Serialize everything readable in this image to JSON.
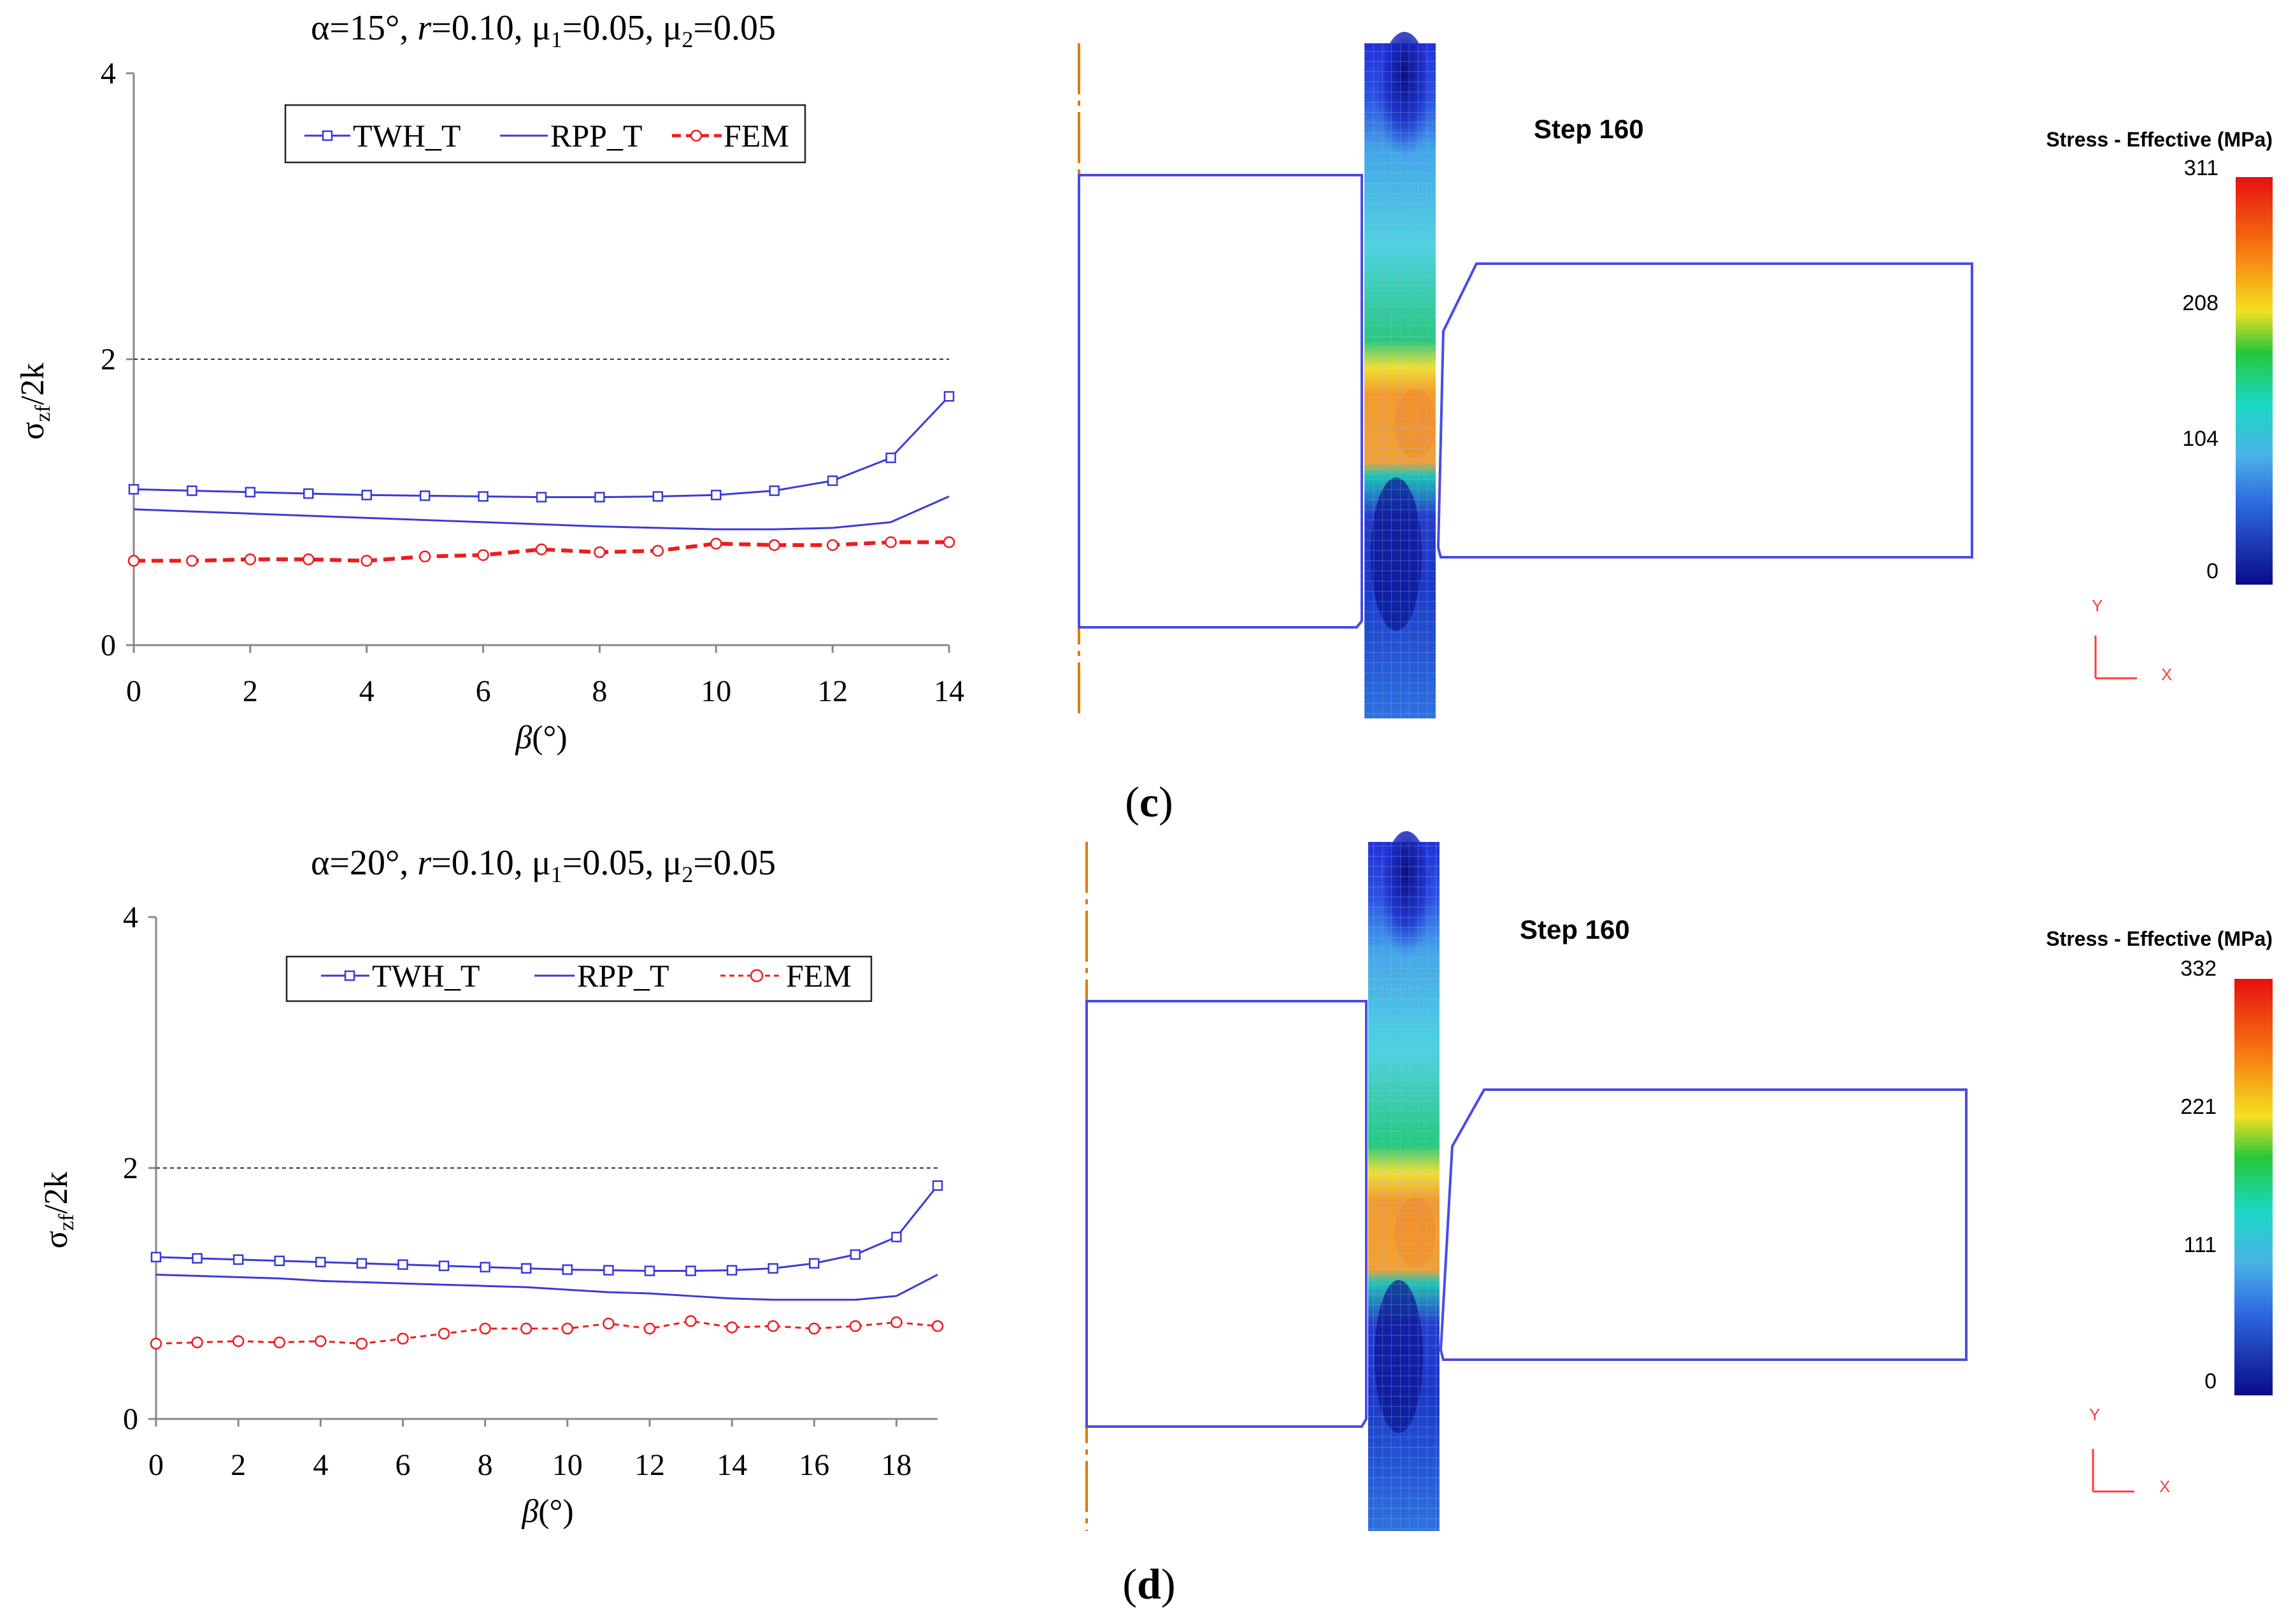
{
  "colors": {
    "twh": "#3a3ad8",
    "rpp": "#3a3ad8",
    "fem": "#ee1c1c",
    "die": "#4a4ae6",
    "axis_line": "#e07b00",
    "triad": "#ff3a3a"
  },
  "chart_data": [
    {
      "type": "line",
      "title": "α=15°, r=0.10, μ1=0.05, μ2=0.05",
      "title_parts": {
        "alpha": "α=15°, ",
        "r_italic": "r",
        "r_rest": "=0.10, μ",
        "mu1_sub": "1",
        "mu1_val": "=0.05, μ",
        "mu2_sub": "2",
        "mu2_val": "=0.05"
      },
      "ylabel_main": "σ",
      "ylabel_sub": "zf",
      "ylabel_rest": "/2k",
      "xlabel_beta": "β",
      "xlabel_unit": "(°)",
      "xlim": [
        0,
        14
      ],
      "ylim": [
        0,
        4
      ],
      "xticks": [
        0,
        2,
        4,
        6,
        8,
        10,
        12,
        14
      ],
      "yticks": [
        0,
        2,
        4
      ],
      "reference_line": 2,
      "legend": [
        "TWH_T",
        "RPP_T",
        "FEM"
      ],
      "x": [
        0,
        1,
        2,
        3,
        4,
        5,
        6,
        7,
        8,
        9,
        10,
        11,
        12,
        13,
        14
      ],
      "series": [
        {
          "name": "TWH_T",
          "values": [
            1.09,
            1.08,
            1.07,
            1.06,
            1.05,
            1.045,
            1.04,
            1.035,
            1.035,
            1.04,
            1.05,
            1.08,
            1.15,
            1.31,
            1.74
          ]
        },
        {
          "name": "RPP_T",
          "values": [
            0.95,
            0.935,
            0.92,
            0.905,
            0.89,
            0.875,
            0.86,
            0.845,
            0.83,
            0.82,
            0.81,
            0.81,
            0.82,
            0.86,
            1.04
          ]
        },
        {
          "name": "FEM",
          "values": [
            0.59,
            0.59,
            0.6,
            0.6,
            0.59,
            0.62,
            0.63,
            0.67,
            0.65,
            0.66,
            0.71,
            0.7,
            0.7,
            0.72,
            0.72
          ]
        }
      ]
    },
    {
      "type": "line",
      "title": "α=20°, r=0.10, μ1=0.05, μ2=0.05",
      "title_parts": {
        "alpha": "α=20°, ",
        "r_italic": "r",
        "r_rest": "=0.10, μ",
        "mu1_sub": "1",
        "mu1_val": "=0.05, μ",
        "mu2_sub": "2",
        "mu2_val": "=0.05"
      },
      "ylabel_main": "σ",
      "ylabel_sub": "zf",
      "ylabel_rest": "/2k",
      "xlabel_beta": "β",
      "xlabel_unit": "(°)",
      "xlim": [
        0,
        19
      ],
      "ylim": [
        0,
        4
      ],
      "xticks": [
        0,
        2,
        4,
        6,
        8,
        10,
        12,
        14,
        16,
        18
      ],
      "yticks": [
        0,
        2,
        4
      ],
      "reference_line": 2,
      "legend": [
        "TWH_T",
        "RPP_T",
        "FEM"
      ],
      "x": [
        0,
        1,
        2,
        3,
        4,
        5,
        6,
        7,
        8,
        9,
        10,
        11,
        12,
        13,
        14,
        15,
        16,
        17,
        18,
        19
      ],
      "series": [
        {
          "name": "TWH_T",
          "values": [
            1.29,
            1.28,
            1.27,
            1.26,
            1.25,
            1.24,
            1.23,
            1.22,
            1.21,
            1.2,
            1.19,
            1.185,
            1.18,
            1.18,
            1.185,
            1.2,
            1.24,
            1.31,
            1.45,
            1.86
          ]
        },
        {
          "name": "RPP_T",
          "values": [
            1.15,
            1.14,
            1.13,
            1.12,
            1.1,
            1.09,
            1.08,
            1.07,
            1.06,
            1.05,
            1.03,
            1.01,
            1.0,
            0.98,
            0.96,
            0.95,
            0.95,
            0.95,
            0.98,
            1.15
          ]
        },
        {
          "name": "FEM",
          "values": [
            0.6,
            0.61,
            0.62,
            0.61,
            0.62,
            0.6,
            0.64,
            0.68,
            0.72,
            0.72,
            0.72,
            0.76,
            0.72,
            0.78,
            0.73,
            0.74,
            0.72,
            0.74,
            0.77,
            0.74
          ]
        }
      ]
    }
  ],
  "simulations": [
    {
      "caption": "c",
      "step_label": "Step  160",
      "legend_title": "Stress - Effective (MPa)",
      "ticks": [
        "311",
        "208",
        "104",
        "0"
      ],
      "axis_y": "Y",
      "axis_x": "X"
    },
    {
      "caption": "d",
      "step_label": "Step  160",
      "legend_title": "Stress - Effective (MPa)",
      "ticks": [
        "332",
        "221",
        "111",
        "0"
      ],
      "axis_y": "Y",
      "axis_x": "X"
    }
  ]
}
